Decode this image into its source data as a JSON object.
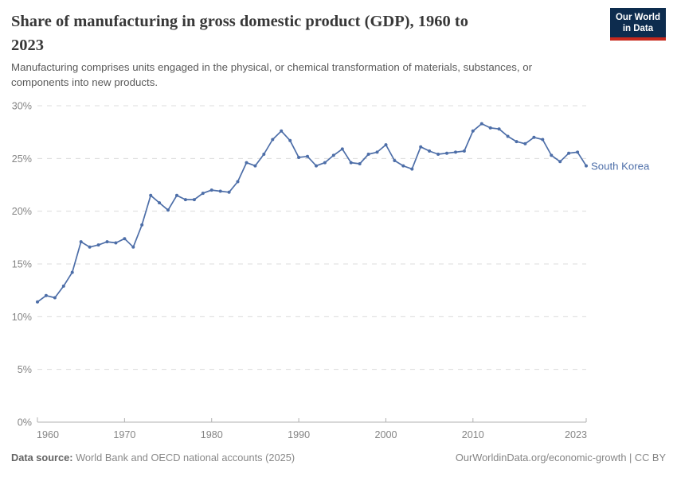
{
  "header": {
    "title_lines": [
      "Share of manufacturing in gross domestic product (GDP), 1960 to",
      "2023"
    ],
    "subtitle_lines": [
      "Manufacturing comprises units engaged in the physical, or chemical transformation of materials, substances, or",
      "components into new products."
    ],
    "logo": {
      "line1": "Our World",
      "line2": "in Data"
    }
  },
  "chart_data": {
    "type": "line",
    "title": "Share of manufacturing in gross domestic product (GDP), 1960 to 2023",
    "subtitle": "Manufacturing comprises units engaged in the physical, or chemical transformation of materials, substances, or components into new products.",
    "xlabel": "",
    "ylabel": "",
    "xlim": [
      1960,
      2023
    ],
    "ylim": [
      0,
      30
    ],
    "y_tick_step": 5,
    "y_tick_suffix": "%",
    "x_ticks": [
      1960,
      1970,
      1980,
      1990,
      2000,
      2010,
      2023
    ],
    "grid": "horizontal-dashed",
    "legend": "end-of-line-label",
    "series": [
      {
        "name": "South Korea",
        "x": [
          1960,
          1961,
          1962,
          1963,
          1964,
          1965,
          1966,
          1967,
          1968,
          1969,
          1970,
          1971,
          1972,
          1973,
          1974,
          1975,
          1976,
          1977,
          1978,
          1979,
          1980,
          1981,
          1982,
          1983,
          1984,
          1985,
          1986,
          1987,
          1988,
          1989,
          1990,
          1991,
          1992,
          1993,
          1994,
          1995,
          1996,
          1997,
          1998,
          1999,
          2000,
          2001,
          2002,
          2003,
          2004,
          2005,
          2006,
          2007,
          2008,
          2009,
          2010,
          2011,
          2012,
          2013,
          2014,
          2015,
          2016,
          2017,
          2018,
          2019,
          2020,
          2021,
          2022,
          2023
        ],
        "values": [
          11.4,
          12.0,
          11.8,
          12.9,
          14.2,
          17.1,
          16.6,
          16.8,
          17.1,
          17.0,
          17.4,
          16.6,
          18.7,
          21.5,
          20.8,
          20.1,
          21.5,
          21.1,
          21.1,
          21.7,
          22.0,
          21.9,
          21.8,
          22.8,
          24.6,
          24.3,
          25.4,
          26.8,
          27.6,
          26.7,
          25.1,
          25.2,
          24.3,
          24.6,
          25.3,
          25.9,
          24.6,
          24.5,
          25.4,
          25.6,
          26.3,
          24.8,
          24.3,
          24.0,
          26.1,
          25.7,
          25.4,
          25.5,
          25.6,
          25.7,
          27.6,
          28.3,
          27.9,
          27.8,
          27.1,
          26.6,
          26.4,
          27.0,
          26.8,
          25.3,
          24.7,
          25.5,
          25.6,
          24.3
        ]
      }
    ]
  },
  "footer": {
    "datasource_label": "Data source:",
    "datasource_text": " World Bank and OECD national accounts (2025)",
    "attribution": "OurWorldinData.org/economic-growth | CC BY"
  },
  "colors": {
    "line": "#4d6ea8",
    "series_label": "#4d6ea8",
    "title_text": "#383838",
    "subtitle_text": "#5a5a5a",
    "axis_text": "#858585",
    "gridline": "#dcdcdc",
    "axis_line": "#b0b0b0",
    "logo_background": "#0d2c4e",
    "logo_red": "#c7291d"
  }
}
